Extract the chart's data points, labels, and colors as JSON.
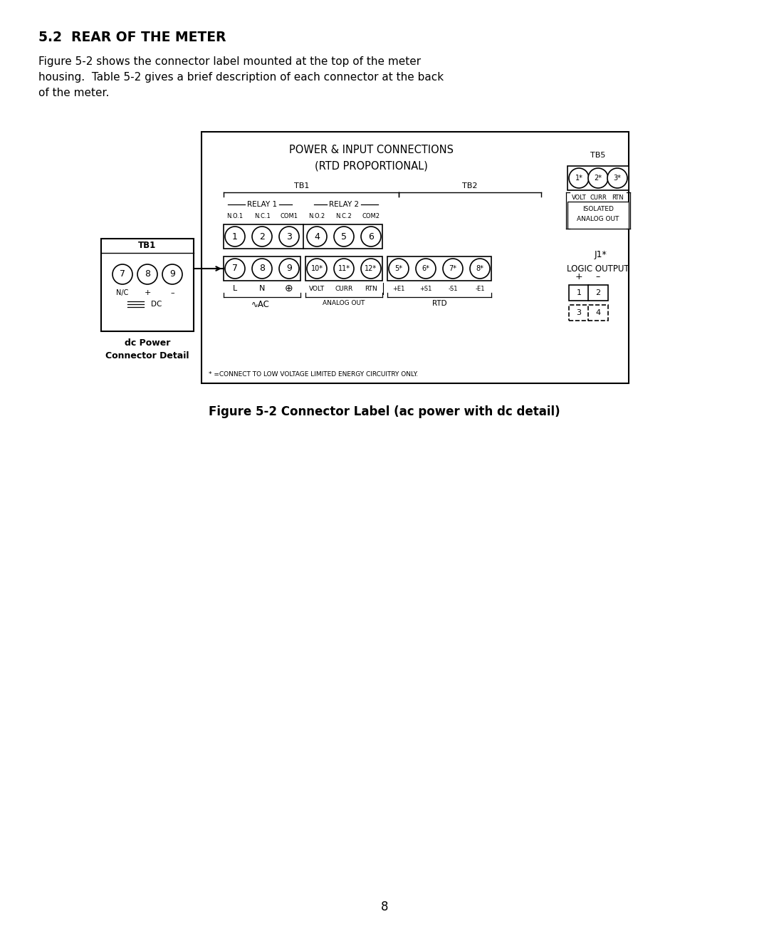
{
  "title": "5.2  REAR OF THE METER",
  "body_text_line1": "Figure 5-2 shows the connector label mounted at the top of the meter",
  "body_text_line2": "housing.  Table 5-2 gives a brief description of each connector at the back",
  "body_text_line3": "of the meter.",
  "caption": "Figure 5-2 Connector Label (ac power with dc detail)",
  "page_number": "8",
  "diagram": {
    "main_box_title1": "POWER & INPUT CONNECTIONS",
    "main_box_title2": "(RTD PROPORTIONAL)",
    "tb1_label": "TB1",
    "tb2_label": "TB2",
    "relay1_label": "RELAY 1",
    "relay2_label": "RELAY 2",
    "pin_labels_row1": [
      "1",
      "2",
      "3",
      "4",
      "5",
      "6"
    ],
    "pin_labels_row2_left": [
      "7",
      "8",
      "9"
    ],
    "pin_labels_row2_mid": [
      "10*",
      "11*",
      "12*"
    ],
    "pin_labels_row2_right": [
      "5*",
      "6*",
      "7*",
      "8*"
    ],
    "sub_labels": [
      "N.O.1",
      "N.C.1",
      "COM1",
      "N.O.2",
      "N.C.2",
      "COM2"
    ],
    "star_note": "* =CONNECT TO LOW VOLTAGE LIMITED ENERGY CIRCUITRY ONLY.",
    "tb5_label": "TB5",
    "tb5_pins": [
      "1*",
      "2*",
      "3*"
    ],
    "tb5_volt_curr_rtn": [
      "VOLT",
      "CURR",
      "RTN"
    ],
    "isolated_label": "ISOLATED",
    "analog_out_right": "ANALOG OUT",
    "j1_label": "J1*",
    "logic_output_label": "LOGIC OUTPUT",
    "j1_plus": "+",
    "j1_minus": "–",
    "j1_pins_solid": [
      "1",
      "2"
    ],
    "j1_pins_dashed": [
      "3",
      "4"
    ],
    "dc_box_title": "TB1",
    "dc_pins": [
      "7",
      "8",
      "9"
    ],
    "dc_label_nc": "N/C",
    "dc_label_plus": "+",
    "dc_label_minus": "–",
    "dc_label": "===DC",
    "dc_caption1": "dc Power",
    "dc_caption2": "Connector Detail"
  }
}
